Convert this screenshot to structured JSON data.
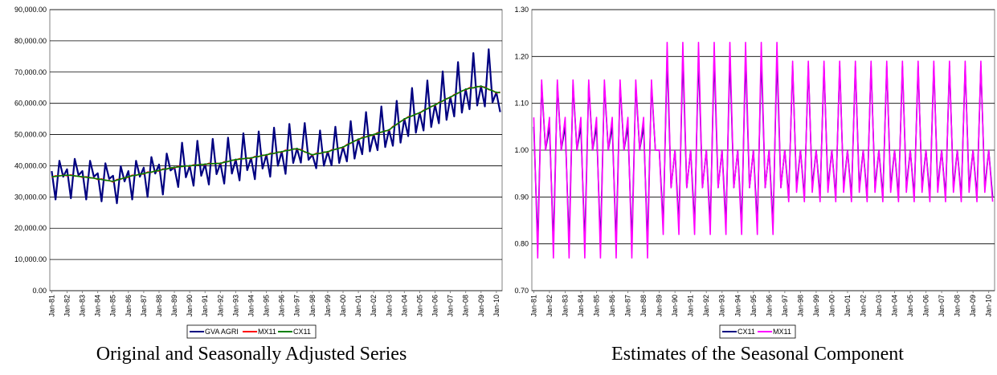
{
  "chart_data": [
    {
      "type": "line",
      "title": "Original and Seasonally Adjusted Series",
      "categories": [
        "Jan-81",
        null,
        null,
        null,
        "Jan-82",
        null,
        null,
        null,
        "Jan-83",
        null,
        null,
        null,
        "Jan-84",
        null,
        null,
        null,
        "Jan-85",
        null,
        null,
        null,
        "Jan-86",
        null,
        null,
        null,
        "Jan-87",
        null,
        null,
        null,
        "Jan-88",
        null,
        null,
        null,
        "Jan-89",
        null,
        null,
        null,
        "Jan-90",
        null,
        null,
        null,
        "Jan-91",
        null,
        null,
        null,
        "Jan-92",
        null,
        null,
        null,
        "Jan-93",
        null,
        null,
        null,
        "Jan-94",
        null,
        null,
        null,
        "Jan-95",
        null,
        null,
        null,
        "Jan-96",
        null,
        null,
        null,
        "Jan-97",
        null,
        null,
        null,
        "Jan-98",
        null,
        null,
        null,
        "Jan-99",
        null,
        null,
        null,
        "Jan-00",
        null,
        null,
        null,
        "Jan-01",
        null,
        null,
        null,
        "Jan-02",
        null,
        null,
        null,
        "Jan-03",
        null,
        null,
        null,
        "Jan-04",
        null,
        null,
        null,
        "Jan-05",
        null,
        null,
        null,
        "Jan-06",
        null,
        null,
        null,
        "Jan-07",
        null,
        null,
        null,
        "Jan-08",
        null,
        null,
        null,
        "Jan-09",
        null,
        null,
        null,
        "Jan-10",
        null
      ],
      "series": [
        {
          "name": "GVA AGRI",
          "color": "#000080",
          "values": [
            38300,
            29200,
            41600,
            36500,
            38900,
            29600,
            42200,
            37000,
            38300,
            29200,
            41600,
            36500,
            37600,
            28600,
            40800,
            35800,
            36800,
            28000,
            39900,
            35000,
            38300,
            29200,
            41600,
            36500,
            39400,
            30000,
            42800,
            37500,
            40400,
            30800,
            43900,
            38500,
            39500,
            33200,
            47400,
            36300,
            40000,
            33600,
            48000,
            36800,
            40500,
            34000,
            48600,
            37300,
            40800,
            34300,
            49000,
            37500,
            42000,
            35300,
            50400,
            38600,
            42500,
            35700,
            51000,
            39100,
            43500,
            36500,
            52200,
            40000,
            44500,
            37400,
            53400,
            40900,
            45500,
            41000,
            53700,
            41900,
            43500,
            39200,
            51300,
            40000,
            44500,
            40100,
            52500,
            40900,
            46000,
            41400,
            54300,
            42300,
            48500,
            43700,
            57200,
            44600,
            50000,
            45000,
            59000,
            46000,
            51500,
            46400,
            60800,
            47400,
            55000,
            49500,
            64900,
            50600,
            57000,
            51300,
            67300,
            52400,
            59500,
            53600,
            70200,
            54700,
            62000,
            55800,
            73200,
            57000,
            64500,
            58100,
            76100,
            59300,
            65500,
            59000,
            77300,
            60300,
            63500,
            57200
          ]
        },
        {
          "name": "MX11",
          "color": "#ff0000",
          "values": [
            36300,
            36800,
            36700,
            37000,
            36800,
            37100,
            36700,
            36700,
            36300,
            36500,
            36100,
            36100,
            35600,
            35800,
            35300,
            35300,
            34800,
            35600,
            35700,
            36200,
            36300,
            37000,
            36900,
            37400,
            37300,
            38000,
            37900,
            38400,
            38300,
            39000,
            38900,
            39400,
            39300,
            39800,
            39700,
            40000,
            39800,
            40300,
            40200,
            40500,
            40300,
            40800,
            40600,
            40800,
            40600,
            41300,
            41300,
            41800,
            41800,
            42300,
            42200,
            42500,
            42300,
            43000,
            42900,
            43400,
            43300,
            44000,
            43900,
            44400,
            44300,
            45000,
            44900,
            45400,
            45300,
            45200,
            44400,
            44100,
            43300,
            44000,
            43900,
            44400,
            44300,
            45100,
            45200,
            45700,
            45800,
            46800,
            47200,
            48000,
            48300,
            49100,
            49200,
            49700,
            49800,
            50600,
            50700,
            51200,
            51300,
            52600,
            53200,
            54200,
            54800,
            55700,
            55900,
            56600,
            56800,
            57800,
            58200,
            59000,
            59300,
            60300,
            60700,
            61500,
            61800,
            62800,
            63200,
            64000,
            64300,
            65000,
            64900,
            65400,
            65300,
            65200,
            64400,
            64100,
            63300,
            63600
          ]
        },
        {
          "name": "CX11",
          "color": "#008000",
          "values": [
            36500,
            36600,
            36800,
            36900,
            37000,
            36900,
            36800,
            36600,
            36500,
            36300,
            36200,
            36000,
            35800,
            35600,
            35400,
            35200,
            35000,
            35400,
            35800,
            36100,
            36500,
            36800,
            37000,
            37300,
            37500,
            37800,
            38000,
            38300,
            38500,
            38800,
            39000,
            39300,
            39500,
            39600,
            39800,
            39900,
            40000,
            40100,
            40300,
            40400,
            40500,
            40600,
            40700,
            40700,
            40800,
            41100,
            41400,
            41700,
            42000,
            42100,
            42300,
            42400,
            42500,
            42800,
            43000,
            43300,
            43500,
            43800,
            44000,
            44300,
            44500,
            44800,
            45000,
            45300,
            45500,
            45000,
            44500,
            44000,
            43500,
            43800,
            44000,
            44300,
            44500,
            44900,
            45300,
            45600,
            46000,
            46600,
            47300,
            47900,
            48500,
            48900,
            49300,
            49600,
            50000,
            50400,
            50800,
            51100,
            51500,
            52400,
            53300,
            54100,
            55000,
            55500,
            56000,
            56500,
            57000,
            57600,
            58300,
            58900,
            59500,
            60100,
            60800,
            61400,
            62000,
            62600,
            63300,
            63900,
            64500,
            64800,
            65000,
            65300,
            65500,
            65000,
            64500,
            64000,
            63500,
            63400
          ]
        }
      ],
      "ylim": [
        0,
        90000
      ],
      "yticks": [
        {
          "value": 0,
          "label": "0.00"
        },
        {
          "value": 10000,
          "label": "10,000.00"
        },
        {
          "value": 20000,
          "label": "20,000.00"
        },
        {
          "value": 30000,
          "label": "30,000.00"
        },
        {
          "value": 40000,
          "label": "40,000.00"
        },
        {
          "value": 50000,
          "label": "50,000.00"
        },
        {
          "value": 60000,
          "label": "60,000.00"
        },
        {
          "value": 70000,
          "label": "70,000.00"
        },
        {
          "value": 80000,
          "label": "80,000.00"
        },
        {
          "value": 90000,
          "label": "90,000.00"
        }
      ],
      "grid": true,
      "legend": "bottom"
    },
    {
      "type": "line",
      "title": "Estimates of the Seasonal Component",
      "categories": [
        "Jan-81",
        null,
        null,
        null,
        "Jan-82",
        null,
        null,
        null,
        "Jan-83",
        null,
        null,
        null,
        "Jan-84",
        null,
        null,
        null,
        "Jan-85",
        null,
        null,
        null,
        "Jan-86",
        null,
        null,
        null,
        "Jan-87",
        null,
        null,
        null,
        "Jan-88",
        null,
        null,
        null,
        "Jan-89",
        null,
        null,
        null,
        "Jan-90",
        null,
        null,
        null,
        "Jan-91",
        null,
        null,
        null,
        "Jan-92",
        null,
        null,
        null,
        "Jan-93",
        null,
        null,
        null,
        "Jan-94",
        null,
        null,
        null,
        "Jan-95",
        null,
        null,
        null,
        "Jan-96",
        null,
        null,
        null,
        "Jan-97",
        null,
        null,
        null,
        "Jan-98",
        null,
        null,
        null,
        "Jan-99",
        null,
        null,
        null,
        "Jan-00",
        null,
        null,
        null,
        "Jan-01",
        null,
        null,
        null,
        "Jan-02",
        null,
        null,
        null,
        "Jan-03",
        null,
        null,
        null,
        "Jan-04",
        null,
        null,
        null,
        "Jan-05",
        null,
        null,
        null,
        "Jan-06",
        null,
        null,
        null,
        "Jan-07",
        null,
        null,
        null,
        "Jan-08",
        null,
        null,
        null,
        "Jan-09",
        null,
        null,
        null,
        "Jan-10",
        null
      ],
      "series": [
        {
          "name": "CX11",
          "color": "#000080",
          "values": [
            1.05,
            0.8,
            1.14,
            1.0,
            1.05,
            0.8,
            1.14,
            1.0,
            1.05,
            0.8,
            1.14,
            1.0,
            1.05,
            0.8,
            1.14,
            1.0,
            1.05,
            0.8,
            1.14,
            1.0,
            1.05,
            0.8,
            1.14,
            1.0,
            1.05,
            0.8,
            1.14,
            1.0,
            1.05,
            0.8,
            1.14,
            1.0,
            1.0,
            0.84,
            1.2,
            0.92,
            1.0,
            0.84,
            1.2,
            0.92,
            1.0,
            0.84,
            1.2,
            0.92,
            1.0,
            0.84,
            1.2,
            0.92,
            1.0,
            0.84,
            1.2,
            0.92,
            1.0,
            0.84,
            1.2,
            0.92,
            1.0,
            0.84,
            1.2,
            0.92,
            1.0,
            0.84,
            1.2,
            0.92,
            1.0,
            0.9,
            1.18,
            0.92,
            1.0,
            0.9,
            1.18,
            0.92,
            1.0,
            0.9,
            1.18,
            0.92,
            1.0,
            0.9,
            1.18,
            0.92,
            1.0,
            0.9,
            1.18,
            0.92,
            1.0,
            0.9,
            1.18,
            0.92,
            1.0,
            0.9,
            1.18,
            0.92,
            1.0,
            0.9,
            1.18,
            0.92,
            1.0,
            0.9,
            1.18,
            0.92,
            1.0,
            0.9,
            1.18,
            0.92,
            1.0,
            0.9,
            1.18,
            0.92,
            1.0,
            0.9,
            1.18,
            0.92,
            1.0,
            0.9,
            1.18,
            0.92,
            1.0,
            0.9
          ]
        },
        {
          "name": "MX11",
          "color": "#ff00ff",
          "values": [
            1.07,
            0.77,
            1.15,
            1.0,
            1.07,
            0.77,
            1.15,
            1.0,
            1.07,
            0.77,
            1.15,
            1.0,
            1.07,
            0.77,
            1.15,
            1.0,
            1.07,
            0.77,
            1.15,
            1.0,
            1.07,
            0.77,
            1.15,
            1.0,
            1.07,
            0.77,
            1.15,
            1.0,
            1.07,
            0.77,
            1.15,
            1.0,
            1.0,
            0.82,
            1.23,
            0.92,
            1.0,
            0.82,
            1.23,
            0.92,
            1.0,
            0.82,
            1.23,
            0.92,
            1.0,
            0.82,
            1.23,
            0.92,
            1.0,
            0.82,
            1.23,
            0.92,
            1.0,
            0.82,
            1.23,
            0.92,
            1.0,
            0.82,
            1.23,
            0.92,
            1.0,
            0.82,
            1.23,
            0.92,
            1.0,
            0.89,
            1.19,
            0.91,
            1.0,
            0.89,
            1.19,
            0.91,
            1.0,
            0.89,
            1.19,
            0.91,
            1.0,
            0.89,
            1.19,
            0.91,
            1.0,
            0.89,
            1.19,
            0.91,
            1.0,
            0.89,
            1.19,
            0.91,
            1.0,
            0.89,
            1.19,
            0.91,
            1.0,
            0.89,
            1.19,
            0.91,
            1.0,
            0.89,
            1.19,
            0.91,
            1.0,
            0.89,
            1.19,
            0.91,
            1.0,
            0.89,
            1.19,
            0.91,
            1.0,
            0.89,
            1.19,
            0.91,
            1.0,
            0.89,
            1.19,
            0.91,
            1.0,
            0.89
          ]
        }
      ],
      "ylim": [
        0.7,
        1.3
      ],
      "yticks": [
        {
          "value": 0.7,
          "label": "0.70"
        },
        {
          "value": 0.8,
          "label": "0.80"
        },
        {
          "value": 0.9,
          "label": "0.90"
        },
        {
          "value": 1.0,
          "label": "1.00"
        },
        {
          "value": 1.1,
          "label": "1.10"
        },
        {
          "value": 1.2,
          "label": "1.20"
        },
        {
          "value": 1.3,
          "label": "1.30"
        }
      ],
      "grid": true,
      "legend": "bottom"
    }
  ]
}
